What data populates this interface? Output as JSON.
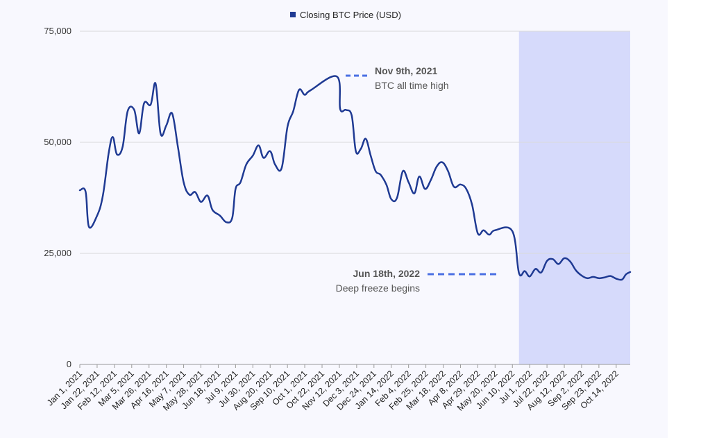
{
  "colors": {
    "line": "#1f3a93",
    "highlight": "#d6dafb",
    "annotation_dash": "#4a6fe3",
    "grid": "#d9d9d9",
    "plot_bg": "#f8f8fe"
  },
  "legend": {
    "label": "Closing BTC Price (USD)"
  },
  "annotations": [
    {
      "title": "Nov 9th, 2021",
      "subtitle": "BTC all time high"
    },
    {
      "title": "Jun 18th, 2022",
      "subtitle": "Deep freeze begins"
    }
  ],
  "chart_data": {
    "type": "line",
    "title": "",
    "xlabel": "",
    "ylabel": "",
    "ylim": [
      0,
      75000
    ],
    "y_ticks": [
      0,
      25000,
      50000,
      75000
    ],
    "y_tick_labels": [
      "0",
      "25,000",
      "50,000",
      "75,000"
    ],
    "grid": true,
    "legend_position": "top-center",
    "x_tick_labels": [
      "Jan 1, 2021",
      "Jan 22, 2021",
      "Feb 12, 2021",
      "Mar 5, 2021",
      "Mar 26, 2021",
      "Apr 16, 2021",
      "May 7, 2021",
      "May 28, 2021",
      "Jun 18, 2021",
      "Jul 9, 2021",
      "Jul 30, 2021",
      "Aug 20, 2021",
      "Sep 10, 2021",
      "Oct 1, 2021",
      "Oct 22, 2021",
      "Nov 12, 2021",
      "Dec 3, 2021",
      "Dec 24, 2021",
      "Jan 14, 2022",
      "Feb 4, 2022",
      "Feb 25, 2022",
      "Mar 18, 2022",
      "Apr 8, 2022",
      "Apr 29, 2022",
      "May 20, 2022",
      "Jun 10, 2022",
      "Jul 1, 2022",
      "Jul 22, 2022",
      "Aug 12, 2022",
      "Sep 2, 2022",
      "Sep 23, 2022",
      "Oct 14, 2022"
    ],
    "highlight_range": [
      "Jun 18, 2022",
      "Oct 31, 2022"
    ],
    "series": [
      {
        "name": "Closing BTC Price (USD)",
        "points": [
          [
            "Jan 1, 2021",
            39200
          ],
          [
            "Jan 8, 2021",
            38900
          ],
          [
            "Jan 12, 2021",
            31000
          ],
          [
            "Jan 22, 2021",
            33500
          ],
          [
            "Jan 29, 2021",
            38000
          ],
          [
            "Feb 5, 2021",
            47500
          ],
          [
            "Feb 10, 2021",
            51200
          ],
          [
            "Feb 15, 2021",
            47300
          ],
          [
            "Feb 22, 2021",
            49000
          ],
          [
            "Feb 28, 2021",
            57000
          ],
          [
            "Mar 8, 2021",
            57300
          ],
          [
            "Mar 14, 2021",
            52000
          ],
          [
            "Mar 20, 2021",
            58800
          ],
          [
            "Mar 28, 2021",
            58500
          ],
          [
            "Apr 3, 2021",
            63200
          ],
          [
            "Apr 9, 2021",
            52000
          ],
          [
            "Apr 16, 2021",
            53800
          ],
          [
            "Apr 23, 2021",
            56500
          ],
          [
            "Apr 30, 2021",
            49000
          ],
          [
            "May 7, 2021",
            41000
          ],
          [
            "May 14, 2021",
            38200
          ],
          [
            "May 21, 2021",
            38800
          ],
          [
            "May 28, 2021",
            36600
          ],
          [
            "Jun 5, 2021",
            38000
          ],
          [
            "Jun 11, 2021",
            34800
          ],
          [
            "Jun 20, 2021",
            33500
          ],
          [
            "Jun 28, 2021",
            32000
          ],
          [
            "Jul 5, 2021",
            33000
          ],
          [
            "Jul 9, 2021",
            39500
          ],
          [
            "Jul 15, 2021",
            41000
          ],
          [
            "Jul 22, 2021",
            45000
          ],
          [
            "Jul 30, 2021",
            47000
          ],
          [
            "Aug 6, 2021",
            49300
          ],
          [
            "Aug 12, 2021",
            46500
          ],
          [
            "Aug 20, 2021",
            48000
          ],
          [
            "Aug 26, 2021",
            45000
          ],
          [
            "Sep 3, 2021",
            44200
          ],
          [
            "Sep 10, 2021",
            53500
          ],
          [
            "Sep 17, 2021",
            57000
          ],
          [
            "Sep 24, 2021",
            61800
          ],
          [
            "Oct 1, 2021",
            60700
          ],
          [
            "Oct 8, 2021",
            61700
          ],
          [
            "Nov 9, 2021",
            64800
          ],
          [
            "Nov 13, 2021",
            57500
          ],
          [
            "Nov 20, 2021",
            57300
          ],
          [
            "Nov 27, 2021",
            56000
          ],
          [
            "Dec 2, 2021",
            48000
          ],
          [
            "Dec 8, 2021",
            48500
          ],
          [
            "Dec 14, 2021",
            50800
          ],
          [
            "Dec 20, 2021",
            47000
          ],
          [
            "Dec 26, 2021",
            43500
          ],
          [
            "Jan 1, 2022",
            42700
          ],
          [
            "Jan 8, 2022",
            40500
          ],
          [
            "Jan 14, 2022",
            37200
          ],
          [
            "Jan 21, 2022",
            37500
          ],
          [
            "Jan 28, 2022",
            43500
          ],
          [
            "Feb 4, 2022",
            41000
          ],
          [
            "Feb 11, 2022",
            38500
          ],
          [
            "Feb 17, 2022",
            42300
          ],
          [
            "Feb 24, 2022",
            39500
          ],
          [
            "Mar 3, 2022",
            41500
          ],
          [
            "Mar 10, 2022",
            44500
          ],
          [
            "Mar 17, 2022",
            45500
          ],
          [
            "Mar 24, 2022",
            43500
          ],
          [
            "Mar 31, 2022",
            40000
          ],
          [
            "Apr 8, 2022",
            40500
          ],
          [
            "Apr 15, 2022",
            39500
          ],
          [
            "Apr 22, 2022",
            36000
          ],
          [
            "Apr 29, 2022",
            29500
          ],
          [
            "May 6, 2022",
            30200
          ],
          [
            "May 13, 2022",
            29200
          ],
          [
            "May 20, 2022",
            30200
          ],
          [
            "Jun 10, 2022",
            30000
          ],
          [
            "Jun 18, 2022",
            20600
          ],
          [
            "Jun 25, 2022",
            21000
          ],
          [
            "Jul 1, 2022",
            19800
          ],
          [
            "Jul 8, 2022",
            21500
          ],
          [
            "Jul 15, 2022",
            20700
          ],
          [
            "Jul 22, 2022",
            23300
          ],
          [
            "Jul 29, 2022",
            23700
          ],
          [
            "Aug 5, 2022",
            22600
          ],
          [
            "Aug 12, 2022",
            23900
          ],
          [
            "Aug 19, 2022",
            23200
          ],
          [
            "Aug 26, 2022",
            21200
          ],
          [
            "Sep 2, 2022",
            20000
          ],
          [
            "Sep 9, 2022",
            19400
          ],
          [
            "Sep 16, 2022",
            19700
          ],
          [
            "Sep 23, 2022",
            19400
          ],
          [
            "Sep 30, 2022",
            19600
          ],
          [
            "Oct 7, 2022",
            19900
          ],
          [
            "Oct 14, 2022",
            19300
          ],
          [
            "Oct 21, 2022",
            19100
          ],
          [
            "Oct 26, 2022",
            20300
          ],
          [
            "Oct 31, 2022",
            20800
          ]
        ]
      }
    ]
  }
}
